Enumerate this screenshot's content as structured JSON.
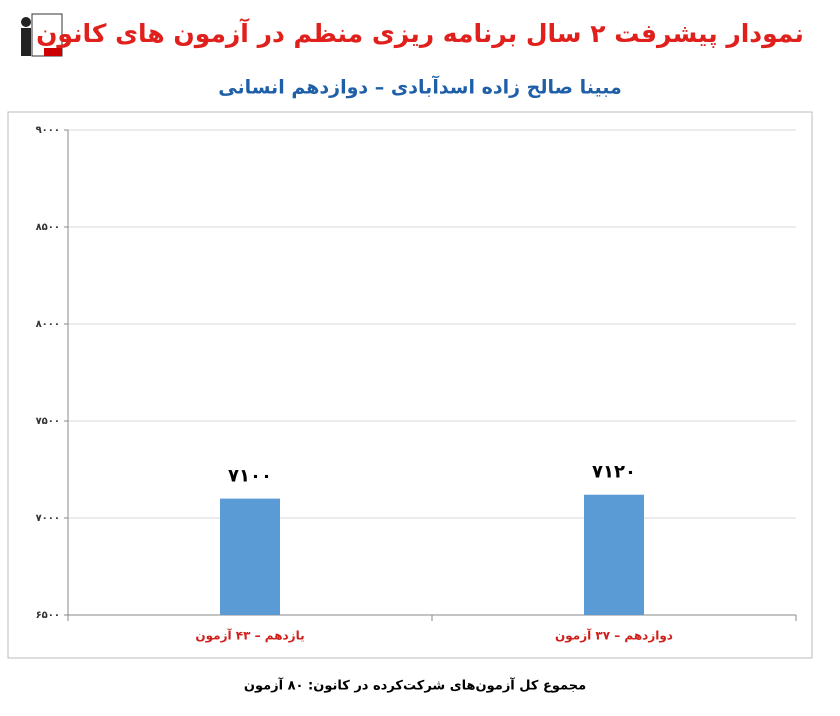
{
  "chart_data": {
    "type": "bar",
    "title": "نمودار پیشرفت ۲ سال برنامه ریزی منظم در آزمون های کانون",
    "subtitle": "مبینا صالح زاده اسدآبادی – دوازدهم انسانی",
    "categories": [
      "یازدهم – ۴۳ آزمون",
      "دوازدهم – ۳۷ آزمون"
    ],
    "values": [
      7100,
      7120
    ],
    "value_labels": [
      "۷۱۰۰",
      "۷۱۲۰"
    ],
    "color": "#5b9bd5",
    "ylim": [
      6500,
      9000
    ],
    "yticks": [
      {
        "value": 6500,
        "label": "۶۵۰۰"
      },
      {
        "value": 7000,
        "label": "۷۰۰۰"
      },
      {
        "value": 7500,
        "label": "۷۵۰۰"
      },
      {
        "value": 8000,
        "label": "۸۰۰۰"
      },
      {
        "value": 8500,
        "label": "۸۵۰۰"
      },
      {
        "value": 9000,
        "label": "۹۰۰۰"
      }
    ],
    "grid": true,
    "footer": "مجموع کل آزمون‌های شرکت‌کرده در کانون: ۸۰ آزمون"
  }
}
